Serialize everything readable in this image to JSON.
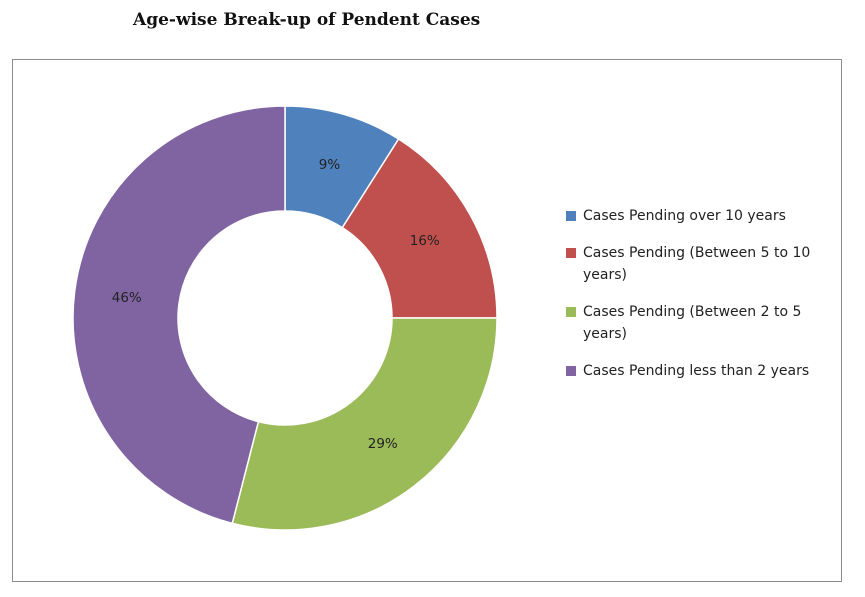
{
  "chart_data": {
    "type": "pie",
    "title": "Age-wise Break-up of Pendent Cases",
    "donut": true,
    "legend_position": "right",
    "series": [
      {
        "name": "Cases Pending over 10 years",
        "value": 9,
        "label": "9%",
        "color": "#4f81bd"
      },
      {
        "name": "Cases Pending (Between 5 to 10 years)",
        "value": 16,
        "label": "16%",
        "color": "#c0504d"
      },
      {
        "name": "Cases Pending (Between 2 to 5 years)",
        "value": 29,
        "label": "29%",
        "color": "#9bbb59"
      },
      {
        "name": "Cases Pending less than 2 years",
        "value": 46,
        "label": "46%",
        "color": "#8064a2"
      }
    ]
  }
}
